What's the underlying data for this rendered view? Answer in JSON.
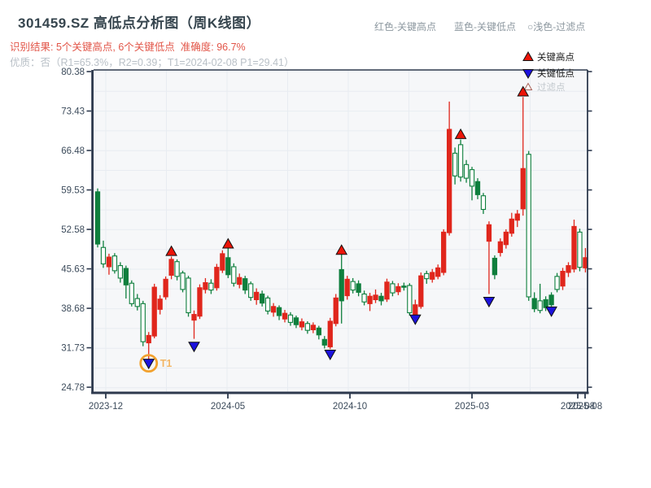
{
  "header": {
    "title": "301459.SZ 高低点分析图（周K线图）",
    "result_line": "识别结果: 5个关键高点, 6个关键低点  准确度: 96.7%",
    "quality_line": "优质：否（R1=65.3%，R2=0.39；T1=2024-02-08 P1=29.41）",
    "legend_red": "红色-关键高点",
    "legend_blue": "蓝色-关键低点",
    "legend_filter": "○浅色-过滤点"
  },
  "colors": {
    "candle_red": "#e0261c",
    "candle_green": "#0e7f3d",
    "hollow_fill": "#ffffff",
    "marker_red": "#ec1408",
    "marker_blue": "#1c12dd",
    "filter_edge": "#a86056",
    "orange_ring": "#f2a12e",
    "t1_text": "#f3b666",
    "axis": "#2e3a4e",
    "grid": "#e8ecf1",
    "plot_bg": "#f6f7f9",
    "tick_label": "#3c4b5b",
    "legend_text": "#1c1c1c",
    "legend_gray": "#c3c9ce"
  },
  "chart_data": {
    "type": "candlestick",
    "title": "301459.SZ 高低点分析图（周K线图）",
    "period": "weekly",
    "grid": "on",
    "ylim": [
      24.78,
      80.38
    ],
    "y_ticks": [
      80.38,
      73.43,
      66.48,
      59.53,
      52.58,
      45.63,
      38.68,
      31.73,
      24.78
    ],
    "x_ticks": [
      {
        "label": "2023-12",
        "i": 1.43
      },
      {
        "label": "2024-05",
        "i": 22.96
      },
      {
        "label": "2024-10",
        "i": 44.48
      },
      {
        "label": "2025-03",
        "i": 66.0
      },
      {
        "label": "2025-08",
        "i": 84.65
      },
      {
        "label": "2025-08",
        "i": 85.94
      }
    ],
    "legend_box": {
      "items": [
        {
          "label": "关键高点",
          "marker": "red-up-triangle"
        },
        {
          "label": "关键低点",
          "marker": "blue-down-triangle"
        },
        {
          "label": "过滤点",
          "marker": "hollow-triangle"
        }
      ]
    },
    "candles": {
      "columns": [
        "open",
        "high",
        "low",
        "close",
        "style"
      ],
      "style_key": {
        "r": "red solid (up)",
        "g": "green solid (down)",
        "gh": "green hollow"
      },
      "rows": [
        [
          59.2,
          59.8,
          49.4,
          50.0,
          "g"
        ],
        [
          46.5,
          50.6,
          45.8,
          49.4,
          "gh"
        ],
        [
          46.0,
          48.3,
          44.6,
          47.7,
          "r"
        ],
        [
          45.3,
          48.4,
          44.8,
          47.9,
          "gh"
        ],
        [
          44.0,
          46.8,
          43.2,
          46.2,
          "gh"
        ],
        [
          45.7,
          46.2,
          40.4,
          42.8,
          "g"
        ],
        [
          39.5,
          43.6,
          39.0,
          43.1,
          "gh"
        ],
        [
          39.0,
          41.2,
          38.3,
          40.4,
          "gh"
        ],
        [
          32.8,
          40.0,
          32.0,
          39.5,
          "gh"
        ],
        [
          32.6,
          34.5,
          29.41,
          33.9,
          "r"
        ],
        [
          33.8,
          43.0,
          33.4,
          42.4,
          "r"
        ],
        [
          38.5,
          41.0,
          37.6,
          40.3,
          "r"
        ],
        [
          40.7,
          44.3,
          40.2,
          43.8,
          "r"
        ],
        [
          44.5,
          47.8,
          43.8,
          47.3,
          "r"
        ],
        [
          44.3,
          47.3,
          43.6,
          46.9,
          "gh"
        ],
        [
          42.0,
          45.3,
          41.5,
          44.9,
          "gh"
        ],
        [
          37.9,
          44.4,
          37.2,
          44.0,
          "gh"
        ],
        [
          36.6,
          38.3,
          33.3,
          37.6,
          "r"
        ],
        [
          37.3,
          42.9,
          36.8,
          42.3,
          "r"
        ],
        [
          42.0,
          44.0,
          41.3,
          43.2,
          "r"
        ],
        [
          41.9,
          43.8,
          41.2,
          43.1,
          "gh"
        ],
        [
          42.3,
          46.5,
          41.8,
          45.9,
          "r"
        ],
        [
          45.4,
          48.9,
          44.9,
          48.3,
          "r"
        ],
        [
          47.6,
          49.3,
          44.0,
          44.6,
          "g"
        ],
        [
          43.1,
          46.6,
          42.5,
          46.0,
          "gh"
        ],
        [
          42.9,
          44.8,
          42.2,
          44.1,
          "r"
        ],
        [
          43.9,
          44.4,
          41.2,
          41.9,
          "g"
        ],
        [
          40.6,
          43.4,
          40.0,
          43.0,
          "gh"
        ],
        [
          40.2,
          42.2,
          39.3,
          41.5,
          "r"
        ],
        [
          41.2,
          41.8,
          39.0,
          39.6,
          "g"
        ],
        [
          38.2,
          40.9,
          37.6,
          40.5,
          "gh"
        ],
        [
          38.0,
          39.6,
          37.2,
          39.0,
          "r"
        ],
        [
          38.8,
          39.2,
          36.6,
          37.4,
          "g"
        ],
        [
          36.8,
          38.4,
          36.2,
          37.8,
          "r"
        ],
        [
          36.2,
          38.0,
          35.6,
          37.5,
          "gh"
        ],
        [
          37.0,
          37.4,
          35.2,
          35.8,
          "g"
        ],
        [
          35.4,
          36.9,
          34.8,
          36.3,
          "r"
        ],
        [
          34.8,
          36.4,
          34.2,
          36.0,
          "gh"
        ],
        [
          34.9,
          36.2,
          34.3,
          35.7,
          "r"
        ],
        [
          35.2,
          35.6,
          33.2,
          34.0,
          "g"
        ],
        [
          33.2,
          33.8,
          31.6,
          32.2,
          "g"
        ],
        [
          31.9,
          37.0,
          31.5,
          36.4,
          "r"
        ],
        [
          36.0,
          41.2,
          35.5,
          40.5,
          "r"
        ],
        [
          45.5,
          49.0,
          36.0,
          40.0,
          "g"
        ],
        [
          40.9,
          44.4,
          40.2,
          43.8,
          "r"
        ],
        [
          41.9,
          44.0,
          41.3,
          43.4,
          "gh"
        ],
        [
          43.0,
          43.6,
          40.8,
          41.5,
          "g"
        ],
        [
          39.8,
          41.8,
          39.2,
          41.2,
          "gh"
        ],
        [
          39.5,
          41.4,
          38.2,
          40.8,
          "r"
        ],
        [
          40.2,
          42.0,
          39.6,
          41.0,
          "r"
        ],
        [
          40.8,
          41.4,
          39.2,
          40.0,
          "g"
        ],
        [
          40.3,
          43.9,
          39.8,
          43.3,
          "r"
        ],
        [
          41.4,
          43.5,
          40.8,
          43.0,
          "gh"
        ],
        [
          41.6,
          43.1,
          41.0,
          42.5,
          "r"
        ],
        [
          42.6,
          43.2,
          41.8,
          42.4,
          "g"
        ],
        [
          37.9,
          43.1,
          37.4,
          42.7,
          "gh"
        ],
        [
          37.6,
          40.2,
          37.0,
          39.3,
          "r"
        ],
        [
          39.0,
          45.0,
          38.6,
          44.4,
          "r"
        ],
        [
          43.9,
          45.3,
          43.0,
          44.8,
          "gh"
        ],
        [
          43.8,
          45.6,
          43.2,
          45.0,
          "r"
        ],
        [
          44.3,
          46.4,
          43.8,
          45.8,
          "r"
        ],
        [
          45.0,
          52.6,
          44.5,
          52.1,
          "r"
        ],
        [
          52.0,
          75.1,
          51.5,
          70.2,
          "r"
        ],
        [
          62.0,
          67.0,
          60.5,
          66.0,
          "gh"
        ],
        [
          61.8,
          68.4,
          61.0,
          67.5,
          "gh"
        ],
        [
          61.6,
          64.8,
          60.8,
          64.0,
          "gh"
        ],
        [
          60.2,
          63.6,
          57.7,
          63.1,
          "gh"
        ],
        [
          61.0,
          61.6,
          57.9,
          58.7,
          "g"
        ],
        [
          56.1,
          59.0,
          55.3,
          58.5,
          "gh"
        ],
        [
          50.5,
          54.0,
          41.2,
          53.4,
          "r"
        ],
        [
          47.5,
          48.0,
          43.8,
          44.6,
          "g"
        ],
        [
          48.5,
          51.0,
          47.8,
          50.4,
          "r"
        ],
        [
          49.9,
          52.6,
          49.2,
          52.1,
          "r"
        ],
        [
          51.9,
          55.5,
          51.3,
          54.4,
          "r"
        ],
        [
          54.2,
          56.0,
          53.0,
          55.3,
          "r"
        ],
        [
          56.2,
          75.9,
          55.0,
          63.3,
          "r"
        ],
        [
          65.8,
          66.4,
          40.0,
          40.7,
          "gh"
        ],
        [
          40.4,
          41.5,
          38.0,
          38.6,
          "g"
        ],
        [
          40.0,
          43.0,
          37.8,
          38.3,
          "gh"
        ],
        [
          40.2,
          40.8,
          38.2,
          38.8,
          "g"
        ],
        [
          41.0,
          41.5,
          39.0,
          39.3,
          "g"
        ],
        [
          42.0,
          44.9,
          41.5,
          44.3,
          "gh"
        ],
        [
          42.6,
          45.8,
          41.9,
          45.2,
          "r"
        ],
        [
          45.0,
          46.8,
          44.2,
          46.2,
          "r"
        ],
        [
          45.6,
          54.3,
          45.0,
          53.1,
          "r"
        ],
        [
          45.9,
          52.7,
          45.2,
          52.1,
          "gh"
        ],
        [
          45.8,
          49.3,
          45.0,
          47.6,
          "r"
        ]
      ]
    },
    "markers": {
      "key_highs": [
        {
          "i": 13,
          "price": 48.7
        },
        {
          "i": 23,
          "price": 50.0
        },
        {
          "i": 43,
          "price": 48.9
        },
        {
          "i": 64,
          "price": 69.3
        },
        {
          "i": 75,
          "price": 76.8
        }
      ],
      "key_lows": [
        {
          "i": 9,
          "price": 29.0,
          "t1": true
        },
        {
          "i": 17,
          "price": 32.0
        },
        {
          "i": 41,
          "price": 30.6
        },
        {
          "i": 56,
          "price": 36.8
        },
        {
          "i": 69,
          "price": 39.9
        },
        {
          "i": 80,
          "price": 38.2
        }
      ],
      "t1_annotation": {
        "label": "T1",
        "date": "2024-02-08",
        "price": 29.41
      }
    }
  }
}
